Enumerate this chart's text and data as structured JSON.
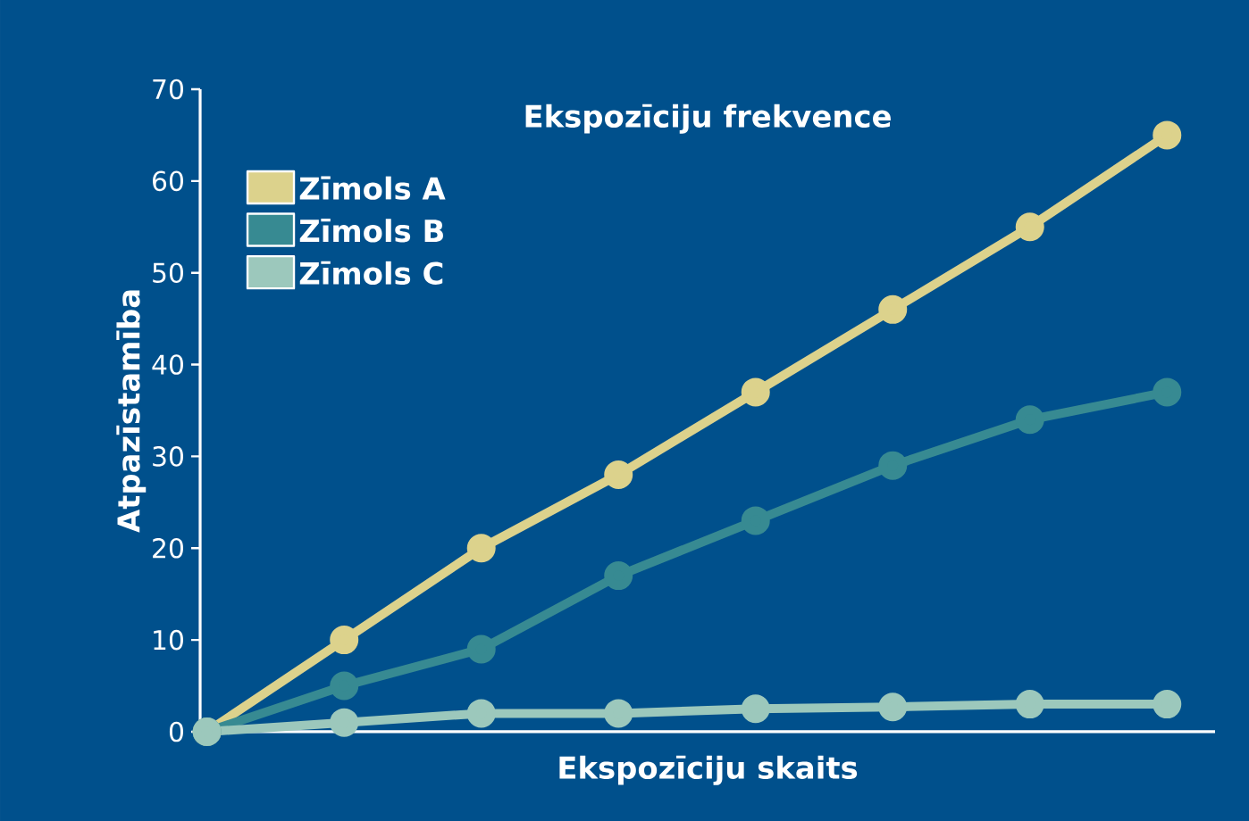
{
  "chart_data": {
    "type": "line",
    "title": "Ekspozīciju frekvence",
    "xlabel": "Ekspozīciju skaits",
    "ylabel": "Atpazīstamība",
    "categories": [
      null,
      null,
      null,
      null,
      null,
      null,
      null,
      null
    ],
    "series": [
      {
        "name": "Zīmols A",
        "color": "#dcd28c",
        "values": [
          0,
          10,
          20,
          28,
          37,
          46,
          55,
          65
        ]
      },
      {
        "name": "Zīmols B",
        "color": "#378a92",
        "values": [
          0,
          5,
          9,
          17,
          23,
          29,
          34,
          37
        ]
      },
      {
        "name": "Zīmols C",
        "color": "#9cc8bc",
        "values": [
          0,
          1,
          2,
          2,
          2.5,
          2.7,
          3,
          3
        ]
      }
    ],
    "ylim": [
      0,
      70
    ],
    "yticks": [
      0,
      10,
      20,
      30,
      40,
      50,
      60,
      70
    ],
    "grid": false,
    "legend": "top left",
    "marker": "circle",
    "line_style": "solid",
    "tick_labels": "y"
  }
}
